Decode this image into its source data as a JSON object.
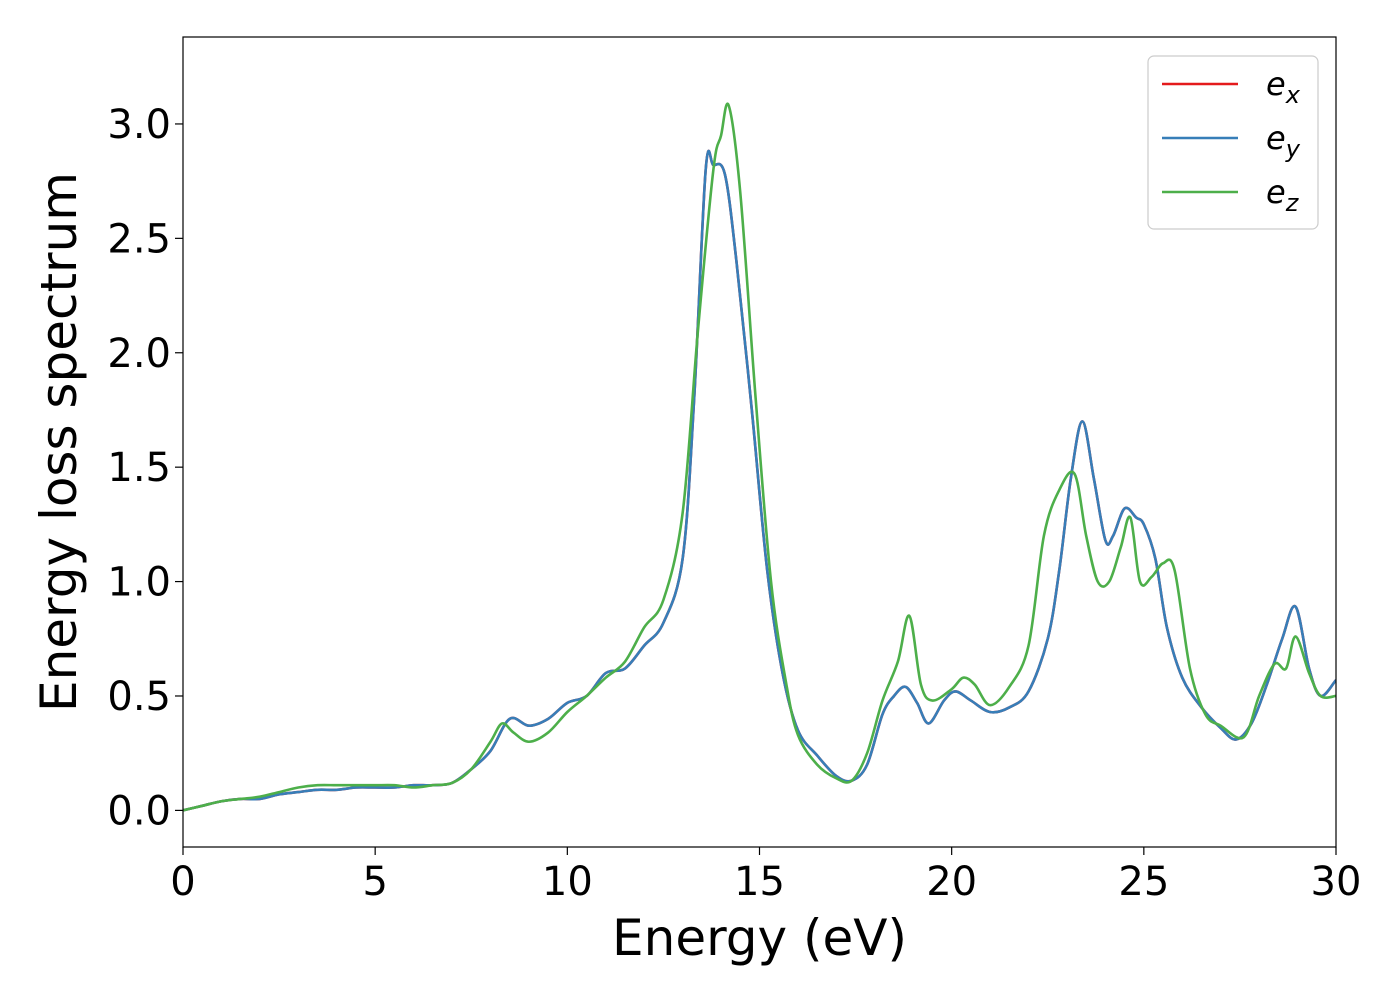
{
  "chart_data": {
    "type": "line",
    "xlabel": "Energy (eV)",
    "ylabel": "Energy loss spectrum",
    "xlim": [
      0,
      30
    ],
    "ylim": [
      -0.16,
      3.38
    ],
    "xticks": [
      0,
      5,
      10,
      15,
      20,
      25,
      30
    ],
    "xtick_labels": [
      "0",
      "5",
      "10",
      "15",
      "20",
      "25",
      "30"
    ],
    "yticks": [
      0.0,
      0.5,
      1.0,
      1.5,
      2.0,
      2.5,
      3.0
    ],
    "ytick_labels": [
      "0.0",
      "0.5",
      "1.0",
      "1.5",
      "2.0",
      "2.5",
      "3.0"
    ],
    "grid": false,
    "legend_position": "top-right",
    "series": [
      {
        "name": "e",
        "subscript": "x",
        "color": "#e41a1c",
        "x": [
          0,
          0.5,
          1.0,
          1.5,
          2.0,
          2.5,
          3.0,
          3.5,
          4.0,
          4.5,
          5.0,
          5.5,
          6.0,
          6.5,
          7.0,
          7.5,
          8.0,
          8.5,
          9.0,
          9.5,
          10.0,
          10.5,
          11.0,
          11.5,
          12.0,
          12.5,
          13.0,
          13.3,
          13.6,
          13.8,
          14.1,
          14.4,
          14.8,
          15.2,
          15.6,
          16.0,
          16.5,
          17.0,
          17.4,
          17.8,
          18.2,
          18.5,
          18.8,
          19.1,
          19.4,
          19.8,
          20.1,
          20.5,
          21.0,
          21.5,
          22.0,
          22.5,
          22.8,
          23.1,
          23.4,
          23.7,
          24.0,
          24.2,
          24.5,
          24.8,
          25.0,
          25.3,
          25.6,
          26.0,
          26.5,
          27.0,
          27.4,
          27.8,
          28.2,
          28.6,
          28.95,
          29.3,
          29.6,
          30.0
        ],
        "y": [
          0.0,
          0.02,
          0.04,
          0.05,
          0.05,
          0.07,
          0.08,
          0.09,
          0.09,
          0.1,
          0.1,
          0.1,
          0.11,
          0.11,
          0.12,
          0.18,
          0.26,
          0.4,
          0.37,
          0.4,
          0.47,
          0.5,
          0.6,
          0.62,
          0.72,
          0.82,
          1.1,
          1.8,
          2.8,
          2.82,
          2.78,
          2.4,
          1.75,
          1.05,
          0.6,
          0.35,
          0.24,
          0.15,
          0.13,
          0.2,
          0.42,
          0.5,
          0.54,
          0.47,
          0.38,
          0.48,
          0.52,
          0.48,
          0.43,
          0.45,
          0.52,
          0.75,
          1.05,
          1.45,
          1.7,
          1.45,
          1.18,
          1.2,
          1.32,
          1.28,
          1.25,
          1.1,
          0.8,
          0.58,
          0.45,
          0.36,
          0.31,
          0.38,
          0.55,
          0.75,
          0.89,
          0.62,
          0.5,
          0.57
        ]
      },
      {
        "name": "e",
        "subscript": "y",
        "color": "#377eb8",
        "x": [
          0,
          0.5,
          1.0,
          1.5,
          2.0,
          2.5,
          3.0,
          3.5,
          4.0,
          4.5,
          5.0,
          5.5,
          6.0,
          6.5,
          7.0,
          7.5,
          8.0,
          8.5,
          9.0,
          9.5,
          10.0,
          10.5,
          11.0,
          11.5,
          12.0,
          12.5,
          13.0,
          13.3,
          13.6,
          13.8,
          14.1,
          14.4,
          14.8,
          15.2,
          15.6,
          16.0,
          16.5,
          17.0,
          17.4,
          17.8,
          18.2,
          18.5,
          18.8,
          19.1,
          19.4,
          19.8,
          20.1,
          20.5,
          21.0,
          21.5,
          22.0,
          22.5,
          22.8,
          23.1,
          23.4,
          23.7,
          24.0,
          24.2,
          24.5,
          24.8,
          25.0,
          25.3,
          25.6,
          26.0,
          26.5,
          27.0,
          27.4,
          27.8,
          28.2,
          28.6,
          28.95,
          29.3,
          29.6,
          30.0
        ],
        "y": [
          0.0,
          0.02,
          0.04,
          0.05,
          0.05,
          0.07,
          0.08,
          0.09,
          0.09,
          0.1,
          0.1,
          0.1,
          0.11,
          0.11,
          0.12,
          0.18,
          0.26,
          0.4,
          0.37,
          0.4,
          0.47,
          0.5,
          0.6,
          0.62,
          0.72,
          0.82,
          1.1,
          1.8,
          2.8,
          2.82,
          2.78,
          2.4,
          1.75,
          1.05,
          0.6,
          0.35,
          0.24,
          0.15,
          0.13,
          0.2,
          0.42,
          0.5,
          0.54,
          0.47,
          0.38,
          0.48,
          0.52,
          0.48,
          0.43,
          0.45,
          0.52,
          0.75,
          1.05,
          1.45,
          1.7,
          1.45,
          1.18,
          1.2,
          1.32,
          1.28,
          1.25,
          1.1,
          0.8,
          0.58,
          0.45,
          0.36,
          0.31,
          0.38,
          0.55,
          0.75,
          0.89,
          0.62,
          0.5,
          0.57
        ]
      },
      {
        "name": "e",
        "subscript": "z",
        "color": "#4daf4a",
        "x": [
          0,
          0.5,
          1.0,
          1.5,
          2.0,
          2.5,
          3.0,
          3.5,
          4.0,
          4.5,
          5.0,
          5.5,
          6.0,
          6.5,
          7.0,
          7.5,
          8.0,
          8.3,
          8.6,
          9.0,
          9.5,
          10.0,
          10.5,
          11.0,
          11.5,
          12.0,
          12.5,
          13.0,
          13.4,
          13.8,
          14.0,
          14.2,
          14.5,
          14.9,
          15.3,
          15.7,
          16.0,
          16.5,
          17.0,
          17.4,
          17.8,
          18.2,
          18.6,
          18.9,
          19.2,
          19.5,
          20.0,
          20.3,
          20.6,
          21.0,
          21.5,
          22.0,
          22.4,
          22.8,
          23.2,
          23.5,
          23.8,
          24.1,
          24.4,
          24.65,
          24.9,
          25.2,
          25.5,
          25.8,
          26.2,
          26.6,
          27.0,
          27.6,
          28.0,
          28.4,
          28.7,
          28.95,
          29.3,
          29.6,
          30.0
        ],
        "y": [
          0.0,
          0.02,
          0.04,
          0.05,
          0.06,
          0.08,
          0.1,
          0.11,
          0.11,
          0.11,
          0.11,
          0.11,
          0.1,
          0.11,
          0.12,
          0.18,
          0.3,
          0.38,
          0.34,
          0.3,
          0.34,
          0.43,
          0.5,
          0.58,
          0.65,
          0.8,
          0.92,
          1.3,
          2.1,
          2.8,
          2.95,
          3.08,
          2.7,
          1.8,
          1.0,
          0.55,
          0.33,
          0.2,
          0.14,
          0.13,
          0.25,
          0.48,
          0.65,
          0.85,
          0.55,
          0.48,
          0.53,
          0.58,
          0.55,
          0.46,
          0.54,
          0.72,
          1.2,
          1.4,
          1.47,
          1.2,
          1.0,
          1.0,
          1.15,
          1.28,
          1.0,
          1.02,
          1.08,
          1.05,
          0.62,
          0.42,
          0.37,
          0.32,
          0.5,
          0.64,
          0.62,
          0.76,
          0.6,
          0.5,
          0.5
        ]
      }
    ]
  }
}
